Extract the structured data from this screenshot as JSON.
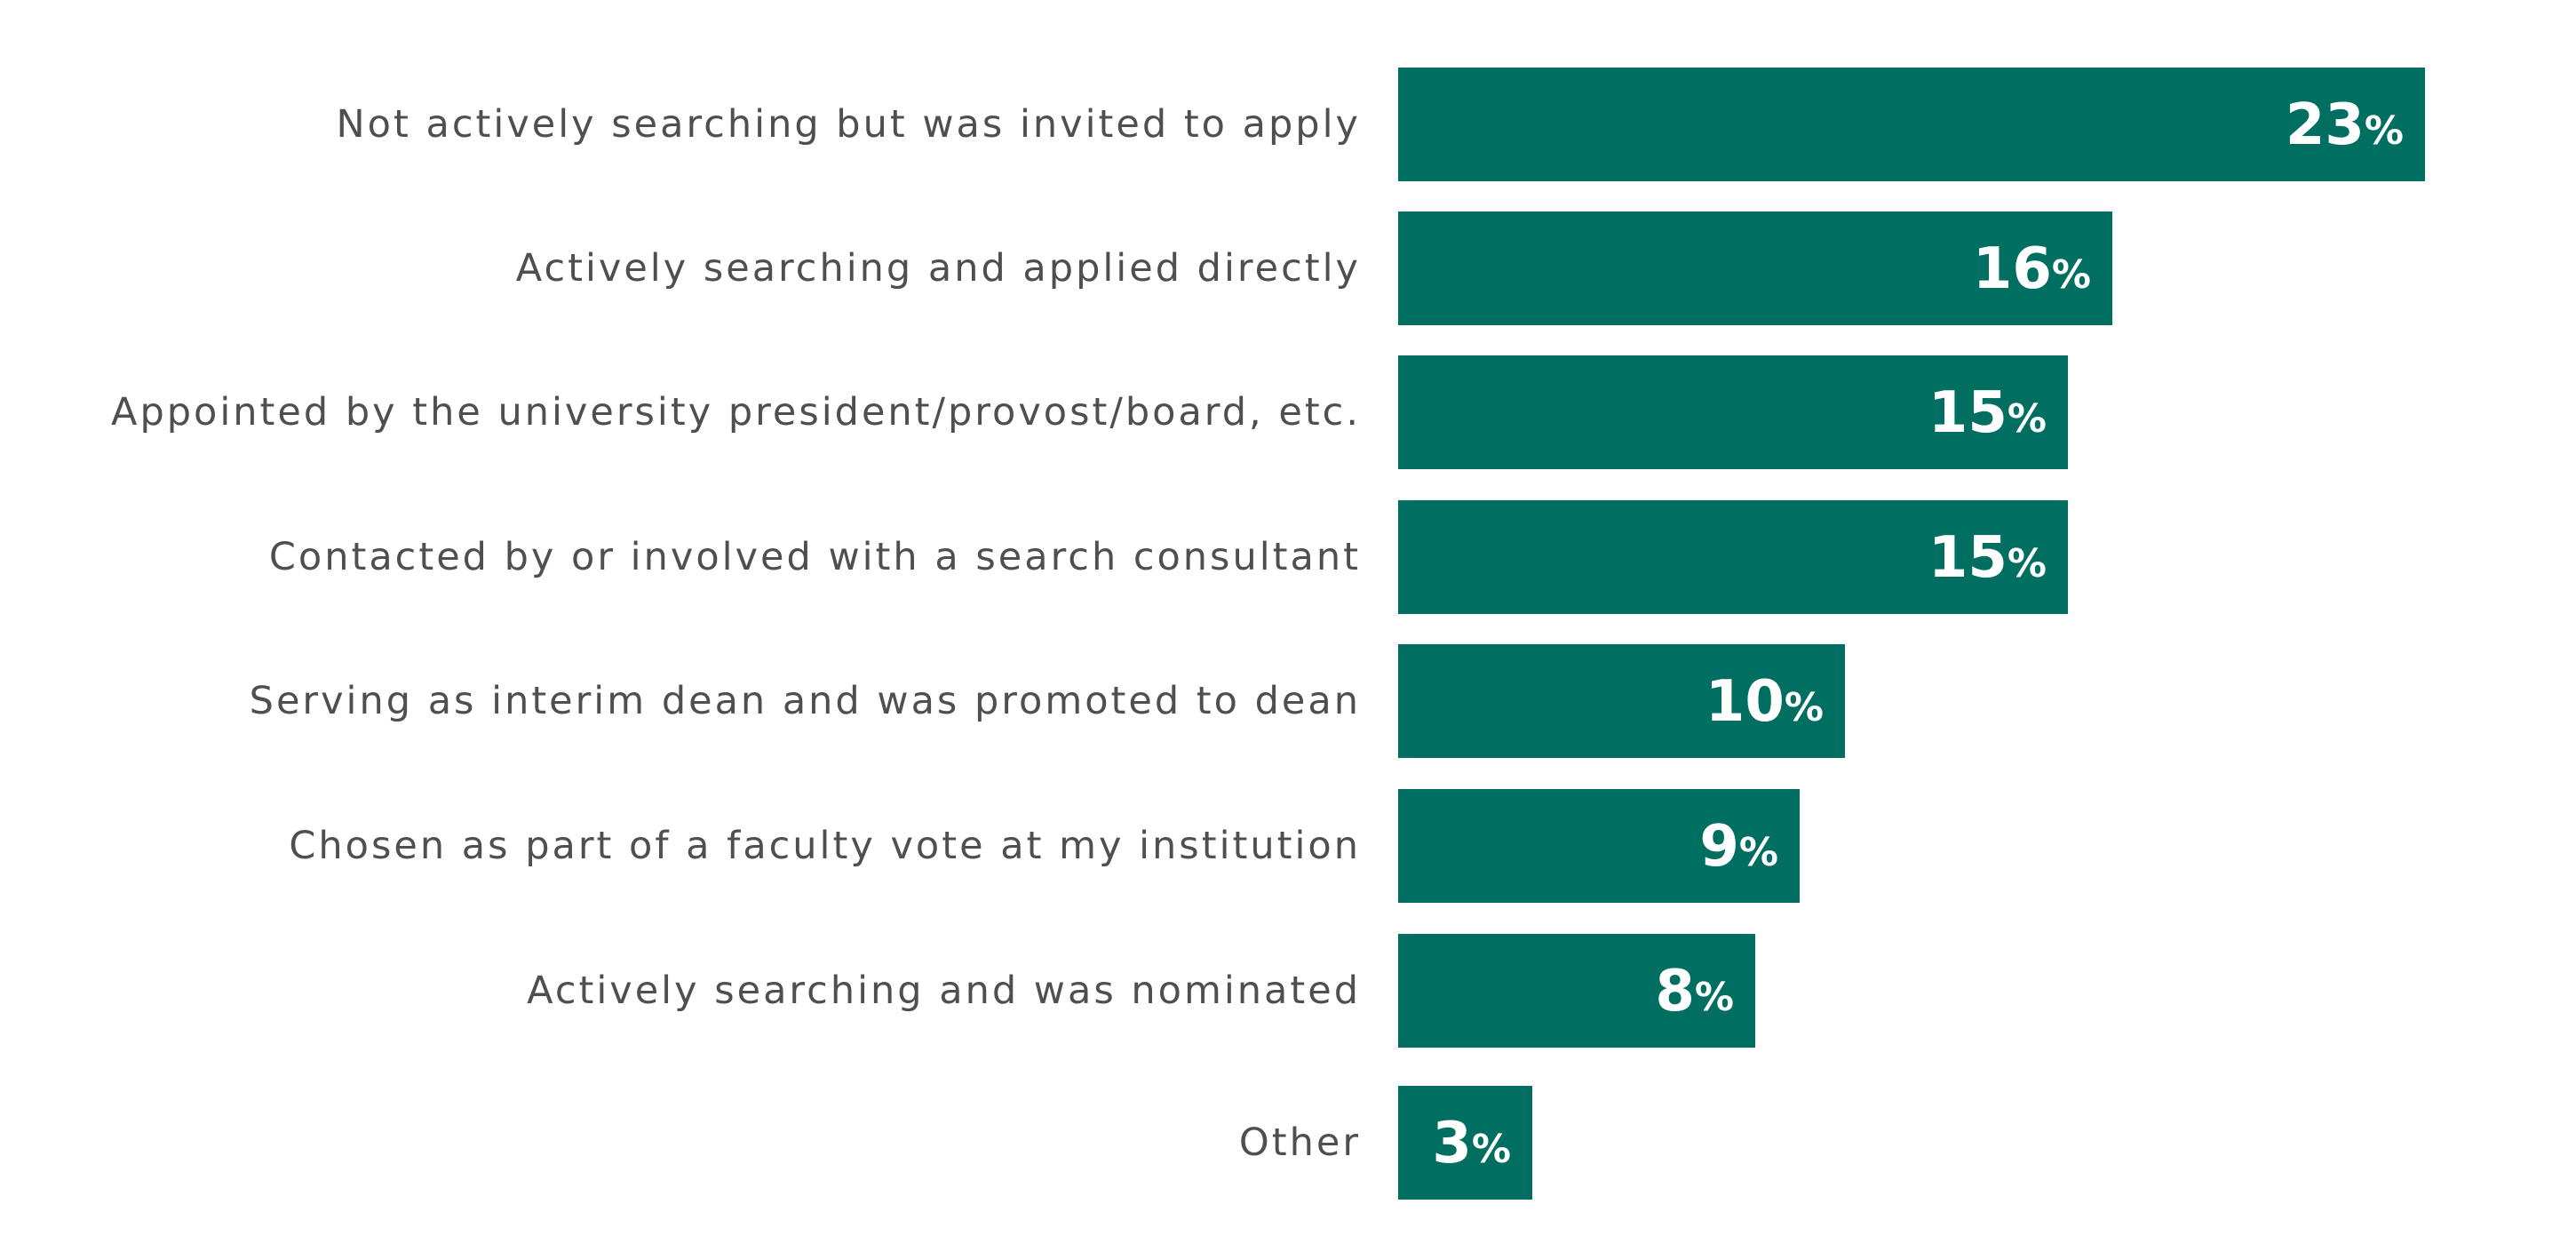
{
  "chart_data": {
    "type": "bar",
    "orientation": "horizontal",
    "categories": [
      "Not actively searching but was invited to apply",
      "Actively searching and applied directly",
      "Appointed by the university president/provost/board, etc.",
      "Contacted by or involved with a search consultant",
      "Serving as interim dean and was promoted to dean",
      "Chosen as part of a faculty vote at my institution",
      "Actively searching and was nominated",
      "Other"
    ],
    "values": [
      23,
      16,
      15,
      15,
      10,
      9,
      8,
      3
    ],
    "value_suffix": "%",
    "xlim": [
      0,
      23
    ],
    "title": "",
    "xlabel": "",
    "ylabel": "",
    "grid": false,
    "legend": "none",
    "bar_color": "#006f62",
    "label_color": "#4f4f4f",
    "value_label_color": "#ffffff"
  }
}
